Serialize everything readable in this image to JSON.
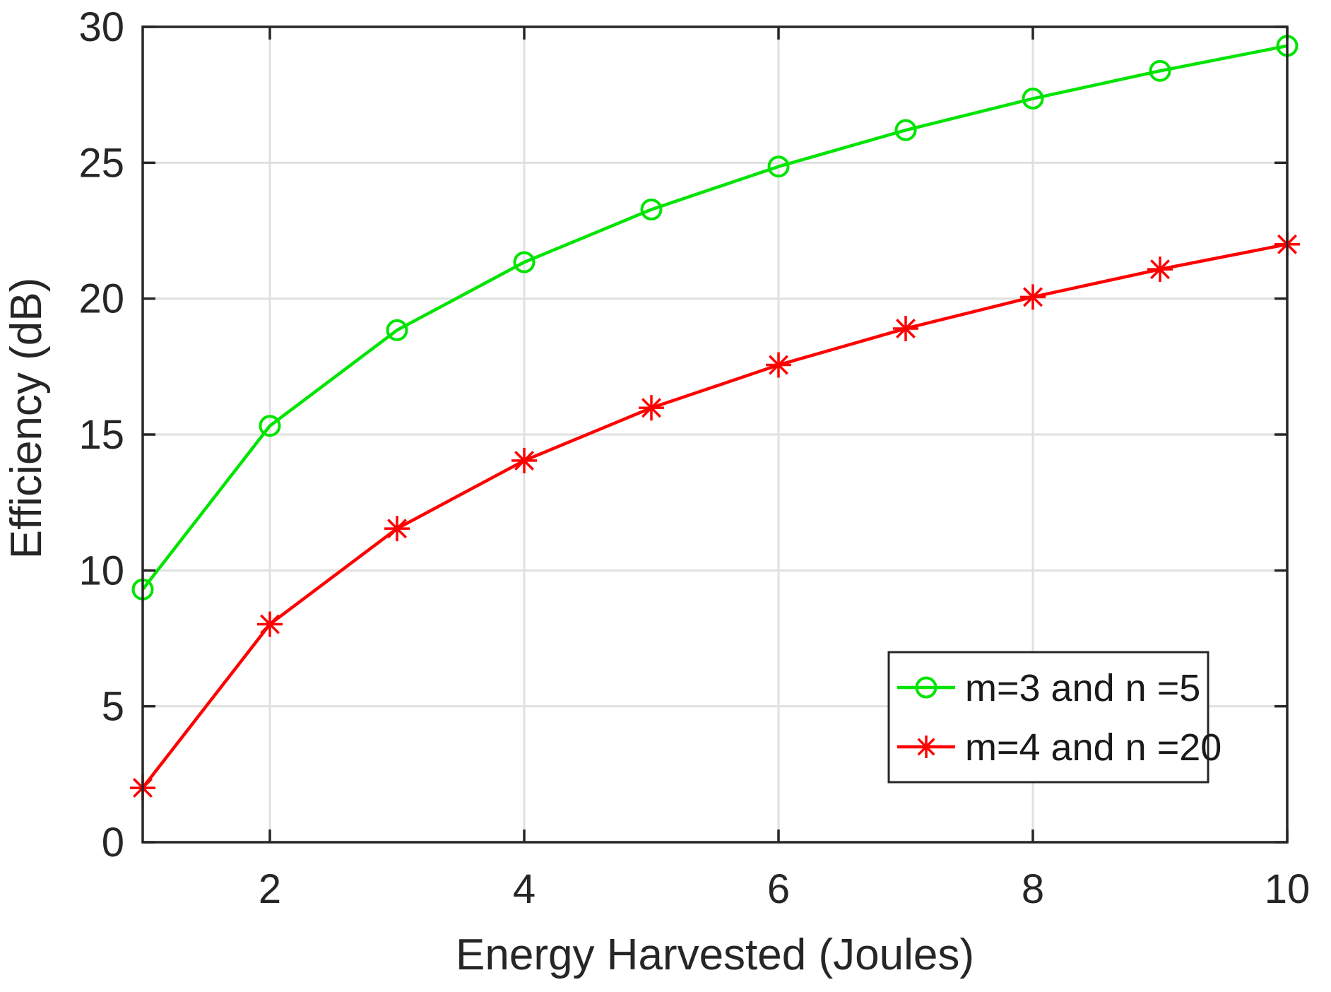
{
  "figure": {
    "background": "#ffffff",
    "axis_color": "#262626",
    "grid_color": "#e0e0e0",
    "tick_label_color": "#262626",
    "legend_text_color": "#1a1a1a"
  },
  "chart_data": {
    "type": "line",
    "title": "",
    "xlabel": "Energy Harvested (Joules)",
    "ylabel": "Efficiency  (dB)",
    "xlim": [
      1,
      10
    ],
    "ylim": [
      0,
      30
    ],
    "xticks": [
      2,
      4,
      6,
      8,
      10
    ],
    "yticks": [
      0,
      5,
      10,
      15,
      20,
      25,
      30
    ],
    "grid": true,
    "box": true,
    "legend": {
      "position": "bottom-right",
      "background": "#ffffff",
      "border_color": "#262626"
    },
    "x": [
      1,
      2,
      3,
      4,
      5,
      6,
      7,
      8,
      9,
      10
    ],
    "series": [
      {
        "name": "m=3 and n =5",
        "color": "#00e400",
        "marker": "circle",
        "values": [
          9.3,
          15.32,
          18.84,
          21.34,
          23.28,
          24.86,
          26.2,
          27.36,
          28.38,
          29.3
        ]
      },
      {
        "name": "m=4 and n =20",
        "color": "#ff0000",
        "marker": "asterisk",
        "values": [
          2.0,
          8.02,
          11.54,
          14.04,
          15.98,
          17.56,
          18.9,
          20.06,
          21.08,
          22.0
        ]
      }
    ]
  }
}
